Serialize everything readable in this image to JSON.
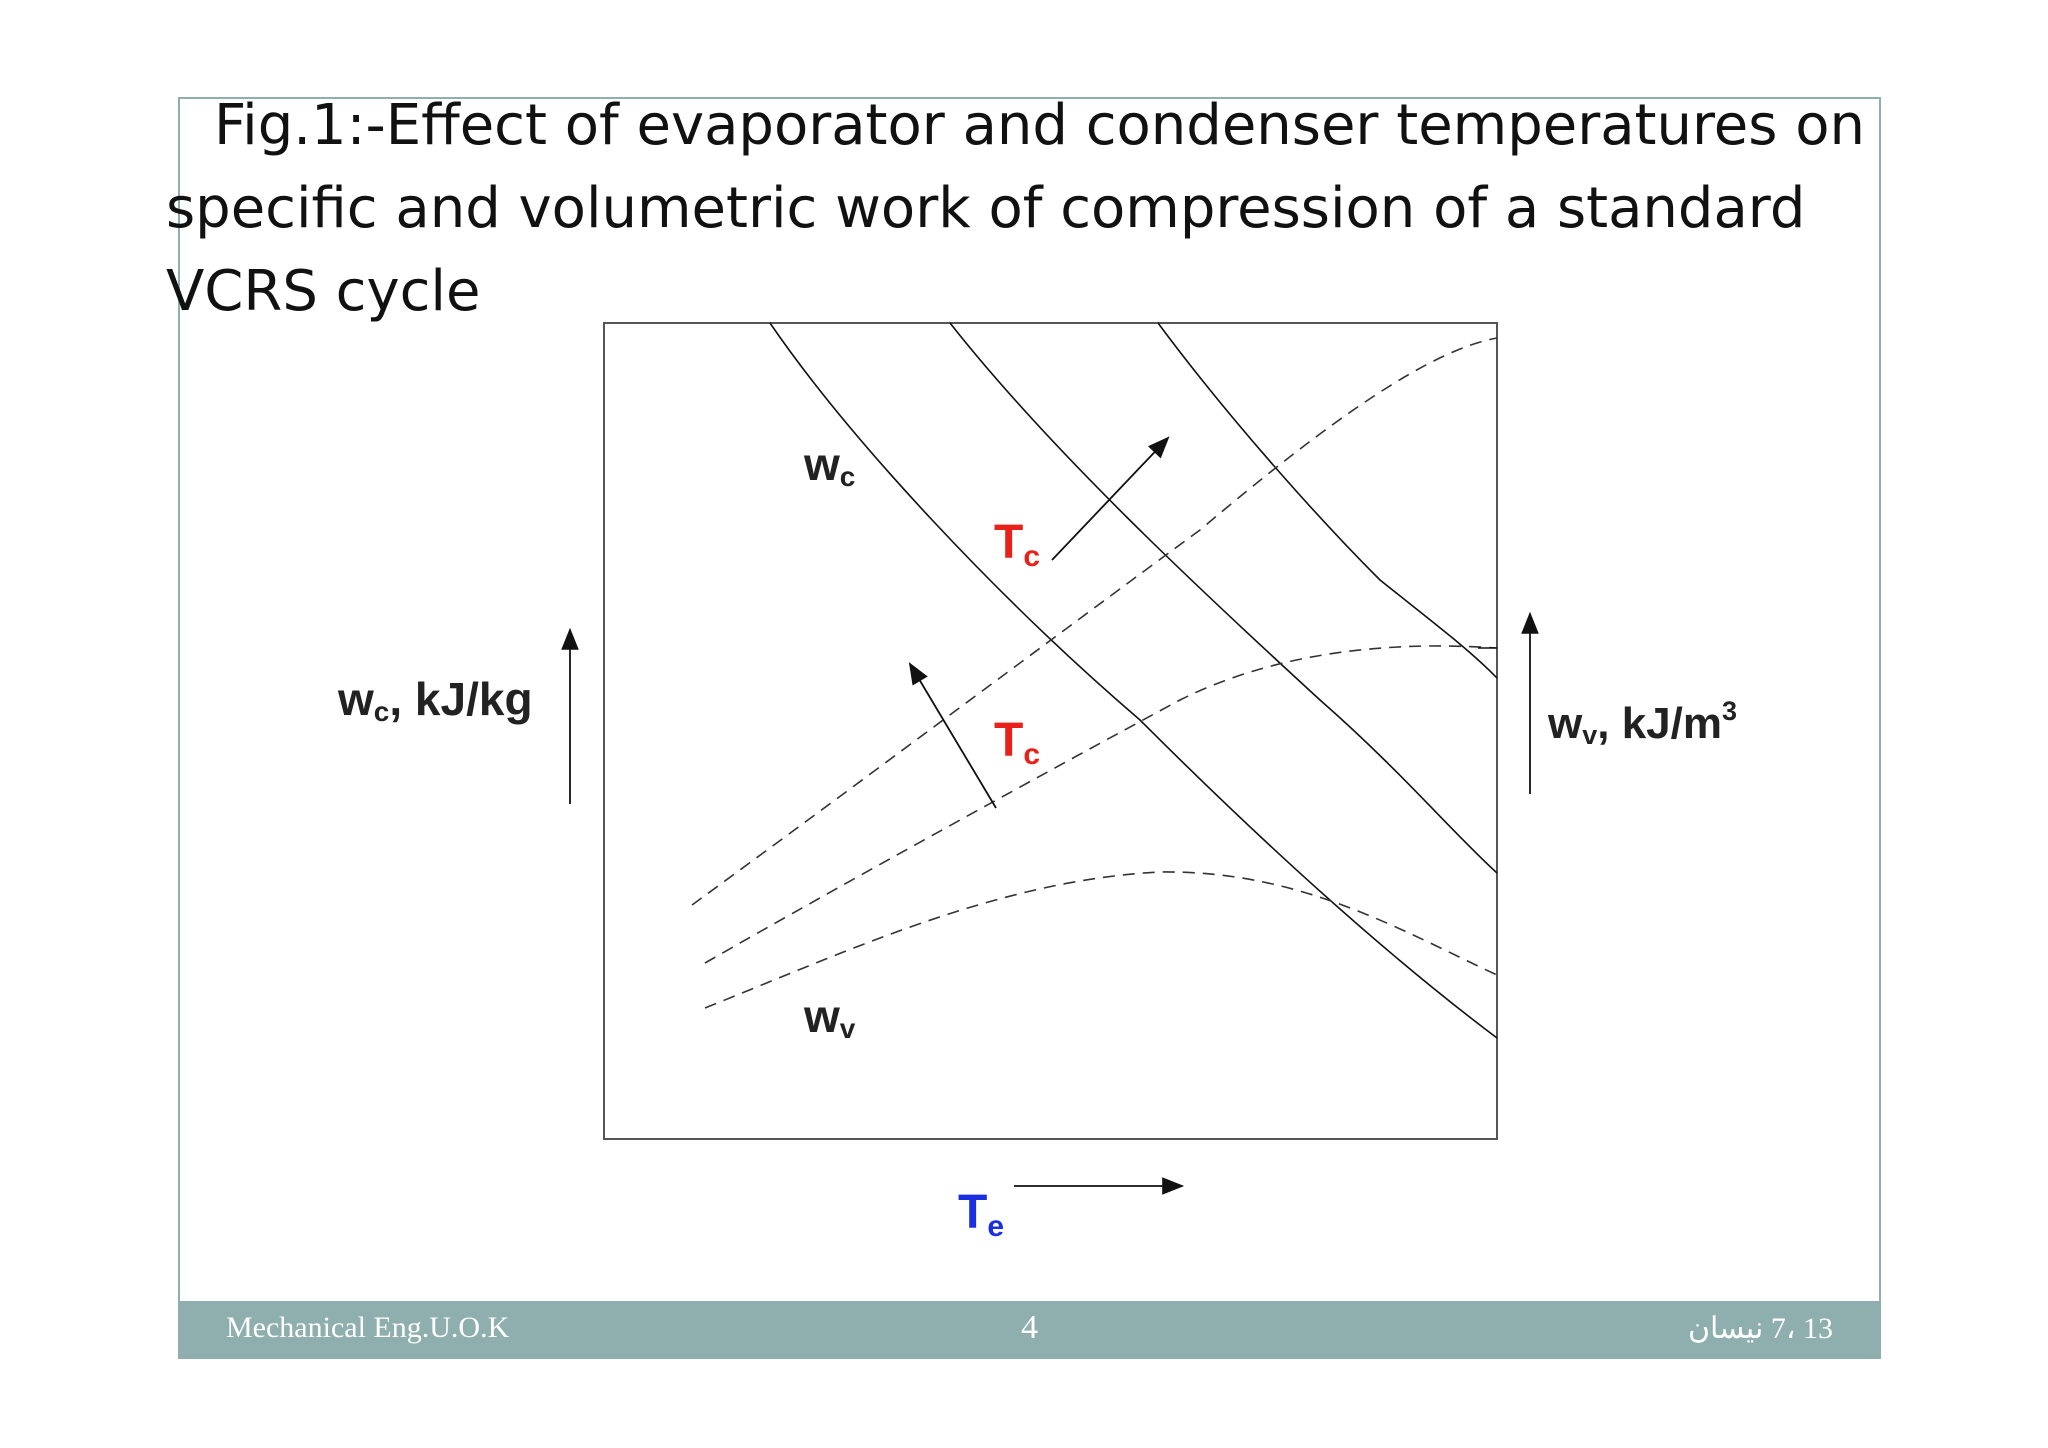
{
  "title": "Fig.1:-Effect of evaporator and condenser temperatures on specific and volumetric work of compression of a standard VCRS cycle",
  "diagram": {
    "left_axis_label": {
      "main": "w",
      "sub": "c",
      "rest": ", kJ/kg"
    },
    "right_axis_label": {
      "main": "w",
      "sub": "v",
      "rest": ", kJ/m",
      "sup": "3"
    },
    "bottom_axis_label": {
      "main": "T",
      "sub": "e"
    },
    "curve_label_wc": {
      "main": "w",
      "sub": "c"
    },
    "curve_label_wv": {
      "main": "w",
      "sub": "v"
    },
    "tc_label_upper": {
      "main": "T",
      "sub": "c"
    },
    "tc_label_lower": {
      "main": "T",
      "sub": "c"
    },
    "colors": {
      "tc": "#e8211b",
      "te": "#1b2fe0",
      "curves": "#111111"
    }
  },
  "footer": {
    "left": "Mechanical Eng.U.O.K",
    "center": "4",
    "right": "13 ،7 نيسان"
  }
}
